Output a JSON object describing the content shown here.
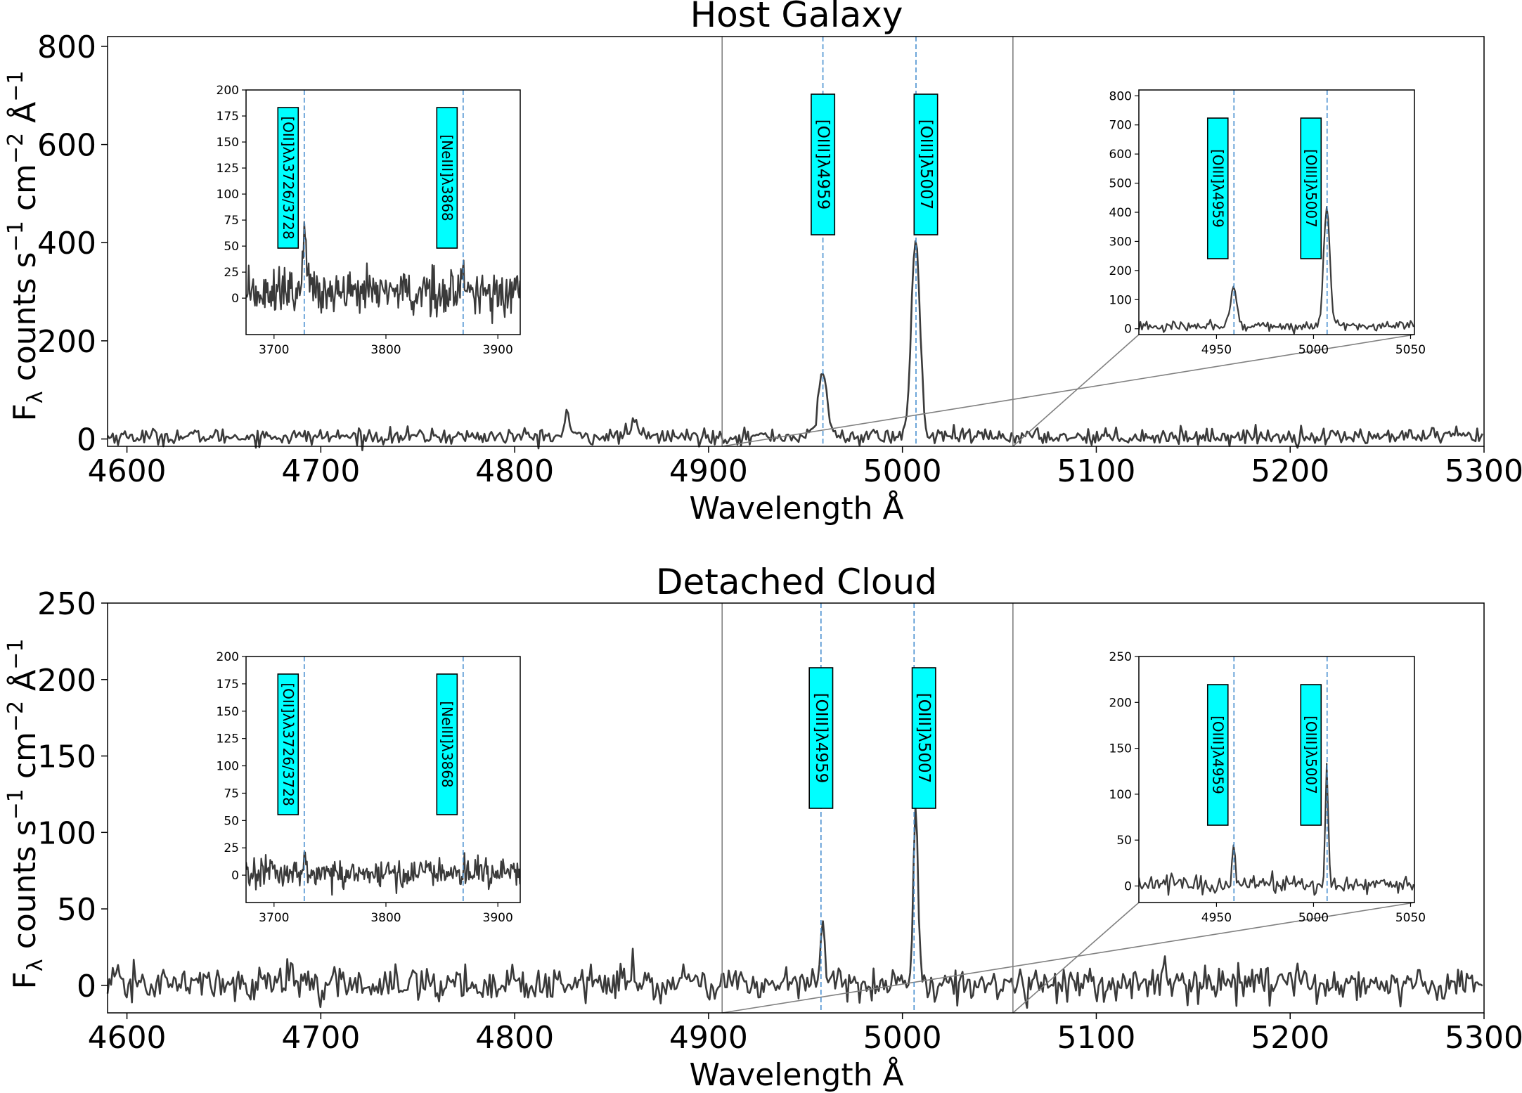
{
  "chart_data": [
    {
      "type": "line",
      "title": "Host Galaxy",
      "xlabel": "Wavelength Å",
      "ylabel": "F",
      "ylabel_subscript": "λ",
      "ylabel_units": " counts s",
      "ylabel_exp1": "−1",
      "ylabel_cm": " cm",
      "ylabel_exp2": "−2",
      "ylabel_ang": " Å",
      "ylabel_exp3": "−1",
      "xlim": [
        4590,
        5300
      ],
      "ylim": [
        -15,
        820
      ],
      "xticks": [
        4600,
        4700,
        4800,
        4900,
        5000,
        5100,
        5200,
        5300
      ],
      "yticks": [
        0,
        200,
        400,
        600,
        800
      ],
      "noise": 8,
      "continuum": 5,
      "features": [
        {
          "x": 4827,
          "height": 60,
          "width": 1.0
        },
        {
          "x": 4861,
          "height": 25,
          "width": 2.5
        },
        {
          "x": 4958.9,
          "height": 135,
          "width": 2.2
        },
        {
          "x": 5006.8,
          "height": 405,
          "width": 2.2
        }
      ],
      "zoom_region": [
        4907,
        5057
      ],
      "emission_lines": [
        {
          "label": "[OIII]λ4959",
          "x": 4959
        },
        {
          "label": "[OIII]λ5007",
          "x": 5007
        }
      ],
      "inset_left": {
        "xlim": [
          3675,
          3920
        ],
        "ylim": [
          -35,
          200
        ],
        "xticks": [
          3700,
          3800,
          3900
        ],
        "yticks": [
          0,
          25,
          50,
          75,
          100,
          125,
          150,
          175,
          200
        ],
        "noise": 11,
        "continuum": 5,
        "features": [
          {
            "x": 3727.5,
            "height": 62,
            "width": 1.6
          },
          {
            "x": 3868.7,
            "height": 20,
            "width": 1.6
          }
        ],
        "emission_lines": [
          {
            "label": "[OII]λλ3726/3728",
            "x": 3727
          },
          {
            "label": "[NeIII]λ3868",
            "x": 3869
          }
        ]
      },
      "inset_right": {
        "xlim": [
          4910,
          5052
        ],
        "ylim": [
          -20,
          820
        ],
        "xticks": [
          4950,
          5000,
          5050
        ],
        "yticks": [
          0,
          100,
          200,
          300,
          400,
          500,
          600,
          700,
          800
        ],
        "noise": 8,
        "continuum": 8,
        "features": [
          {
            "x": 4958.9,
            "height": 135,
            "width": 1.6
          },
          {
            "x": 5006.8,
            "height": 405,
            "width": 1.6
          }
        ],
        "emission_lines": [
          {
            "label": "[OIII]λ4959",
            "x": 4959
          },
          {
            "label": "[OIII]λ5007",
            "x": 5007
          }
        ]
      }
    },
    {
      "type": "line",
      "title": "Detached Cloud",
      "xlabel": "Wavelength Å",
      "ylabel": "F",
      "ylabel_subscript": "λ",
      "ylabel_units": " counts s",
      "ylabel_exp1": "−1",
      "ylabel_cm": " cm",
      "ylabel_exp2": "−2",
      "ylabel_ang": " Å",
      "ylabel_exp3": "−1",
      "xlim": [
        4590,
        5300
      ],
      "ylim": [
        -18,
        250
      ],
      "xticks": [
        4600,
        4700,
        4800,
        4900,
        5000,
        5100,
        5200,
        5300
      ],
      "yticks": [
        0,
        50,
        100,
        150,
        200,
        250
      ],
      "noise": 5.5,
      "continuum": 1,
      "features": [
        {
          "x": 4684,
          "height": 14,
          "width": 1.0
        },
        {
          "x": 4861,
          "height": 13,
          "width": 1.0
        },
        {
          "x": 4958.9,
          "height": 44,
          "width": 1.1
        },
        {
          "x": 5006.8,
          "height": 122,
          "width": 1.2
        }
      ],
      "zoom_region": [
        4907,
        5057
      ],
      "emission_lines": [
        {
          "label": "[OIII]λ4959",
          "x": 4958
        },
        {
          "label": "[OIII]λ5007",
          "x": 5006
        }
      ],
      "inset_left": {
        "xlim": [
          3675,
          3920
        ],
        "ylim": [
          -25,
          200
        ],
        "xticks": [
          3700,
          3800,
          3900
        ],
        "yticks": [
          0,
          25,
          50,
          75,
          100,
          125,
          150,
          175,
          200
        ],
        "noise": 7,
        "continuum": 2,
        "features": [
          {
            "x": 3727.5,
            "height": 14,
            "width": 1.4
          }
        ],
        "emission_lines": [
          {
            "label": "[OII]λλ3726/3728",
            "x": 3727
          },
          {
            "label": "[NeIII]λ3868",
            "x": 3869
          }
        ]
      },
      "inset_right": {
        "xlim": [
          4910,
          5052
        ],
        "ylim": [
          -18,
          250
        ],
        "xticks": [
          4950,
          5000,
          5050
        ],
        "yticks": [
          0,
          50,
          100,
          150,
          200,
          250
        ],
        "noise": 5,
        "continuum": 2,
        "features": [
          {
            "x": 4958.9,
            "height": 44,
            "width": 0.8
          },
          {
            "x": 5006.8,
            "height": 122,
            "width": 0.8
          }
        ],
        "emission_lines": [
          {
            "label": "[OIII]λ4959",
            "x": 4959
          },
          {
            "label": "[OIII]λ5007",
            "x": 5007
          }
        ]
      }
    }
  ]
}
